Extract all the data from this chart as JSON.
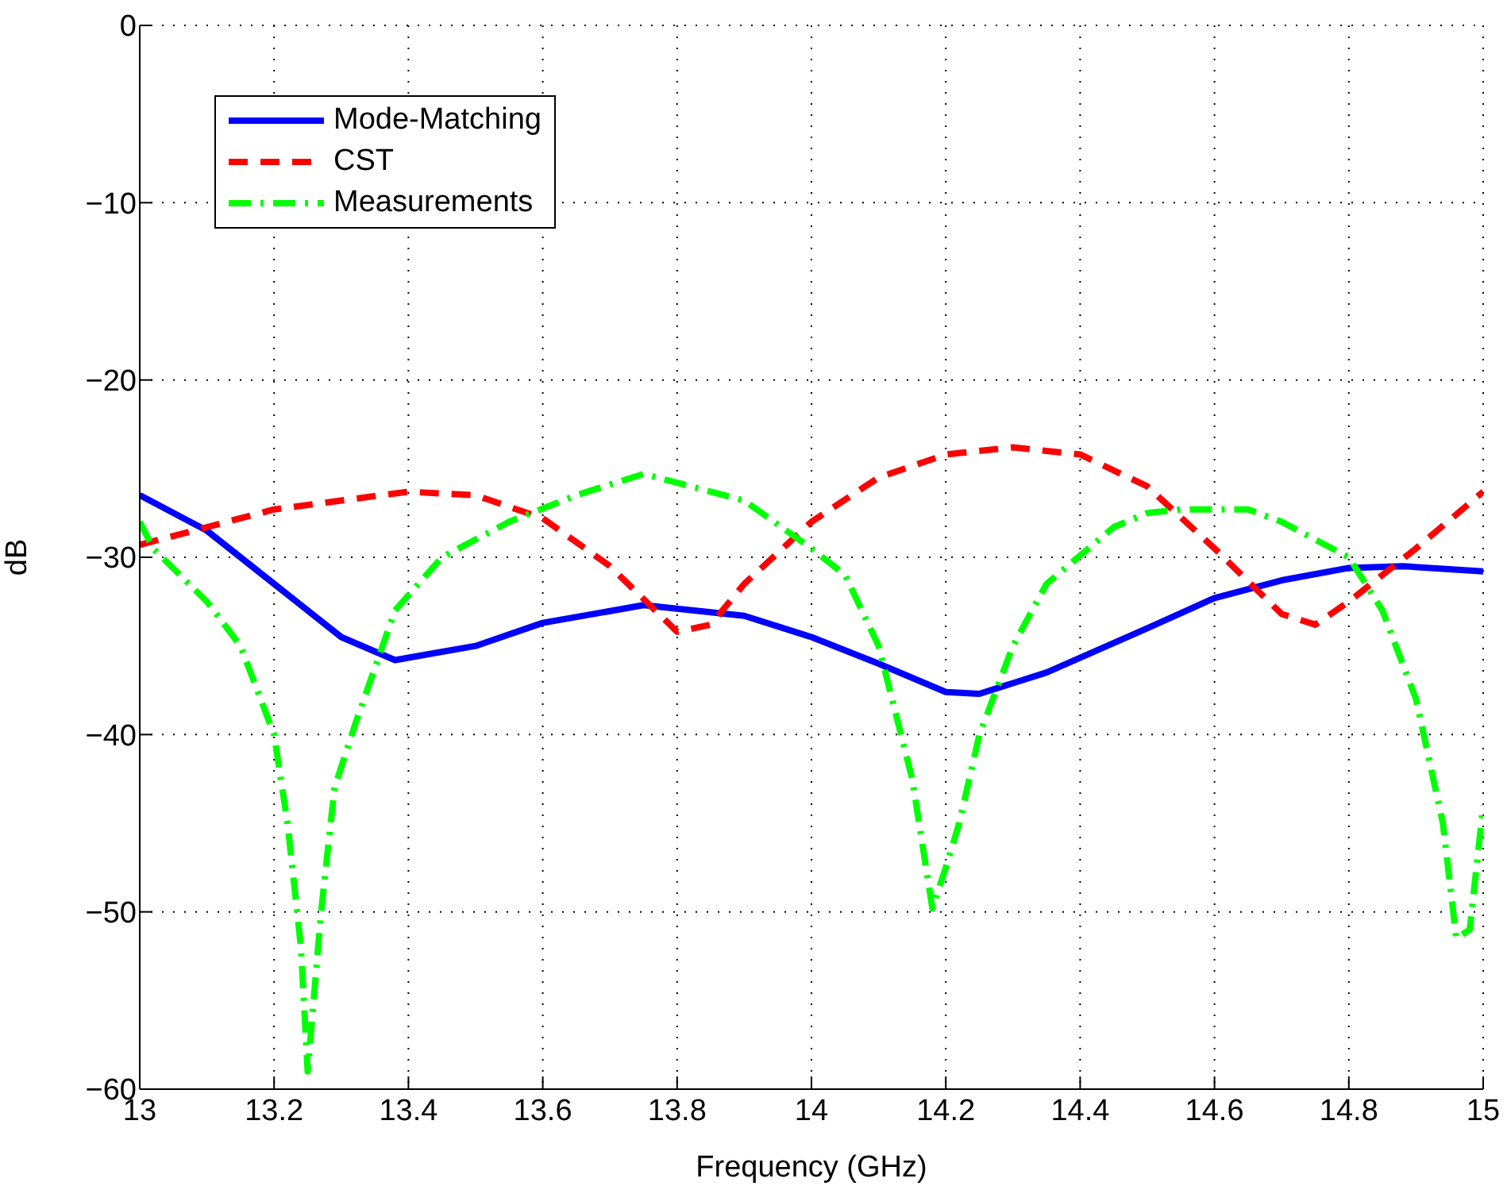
{
  "chart_data": {
    "type": "line",
    "xlabel": "Frequency (GHz)",
    "ylabel": "dB",
    "xlim": [
      13,
      15
    ],
    "ylim": [
      -60,
      0
    ],
    "xticks": [
      13,
      13.2,
      13.4,
      13.6,
      13.8,
      14,
      14.2,
      14.4,
      14.6,
      14.8,
      15
    ],
    "yticks": [
      -60,
      -50,
      -40,
      -30,
      -20,
      -10,
      0
    ],
    "grid": true,
    "legend": "top left",
    "marker": "none",
    "series": [
      {
        "name": "Mode-Matching",
        "color": "#0000ff",
        "line_style": "solid",
        "x": [
          13,
          13.1,
          13.2,
          13.3,
          13.38,
          13.5,
          13.6,
          13.75,
          13.9,
          14,
          14.1,
          14.2,
          14.25,
          14.35,
          14.5,
          14.6,
          14.7,
          14.8,
          14.88,
          15
        ],
        "values": [
          -26.5,
          -28.5,
          -31.5,
          -34.5,
          -35.8,
          -35,
          -33.7,
          -32.7,
          -33.3,
          -34.5,
          -36,
          -37.6,
          -37.7,
          -36.5,
          -34,
          -32.3,
          -31.3,
          -30.6,
          -30.5,
          -30.8
        ]
      },
      {
        "name": "CST",
        "color": "#ff0000",
        "line_style": "dashed",
        "x": [
          13,
          13.2,
          13.4,
          13.5,
          13.6,
          13.7,
          13.8,
          13.85,
          13.9,
          14,
          14.1,
          14.2,
          14.3,
          14.4,
          14.5,
          14.6,
          14.7,
          14.75,
          14.8,
          14.9,
          15
        ],
        "values": [
          -29.3,
          -27.3,
          -26.3,
          -26.5,
          -27.8,
          -30.5,
          -34.2,
          -33.8,
          -31.5,
          -28,
          -25.5,
          -24.2,
          -23.8,
          -24.2,
          -26,
          -29.5,
          -33.2,
          -33.8,
          -32.5,
          -29.5,
          -26.3
        ]
      },
      {
        "name": "Measurements",
        "color": "#00ff00",
        "line_style": "dashdot",
        "x": [
          13,
          13.02,
          13.1,
          13.15,
          13.2,
          13.22,
          13.24,
          13.25,
          13.27,
          13.29,
          13.32,
          13.38,
          13.45,
          13.55,
          13.65,
          13.75,
          13.8,
          13.9,
          14,
          14.05,
          14.1,
          14.15,
          14.18,
          14.2,
          14.22,
          14.25,
          14.3,
          14.35,
          14.45,
          14.5,
          14.55,
          14.65,
          14.7,
          14.75,
          14.8,
          14.85,
          14.9,
          14.94,
          14.96,
          14.98,
          15
        ],
        "values": [
          -28,
          -29.5,
          -32.5,
          -35,
          -40,
          -45,
          -52,
          -59,
          -50,
          -43,
          -39.5,
          -33,
          -30,
          -28,
          -26.5,
          -25.3,
          -25.8,
          -26.8,
          -29.5,
          -31,
          -35,
          -42.5,
          -49.8,
          -47.5,
          -45,
          -40,
          -35,
          -31.5,
          -28.3,
          -27.5,
          -27.3,
          -27.3,
          -28,
          -29,
          -30,
          -33,
          -38,
          -45,
          -51.5,
          -51,
          -44
        ]
      }
    ]
  }
}
